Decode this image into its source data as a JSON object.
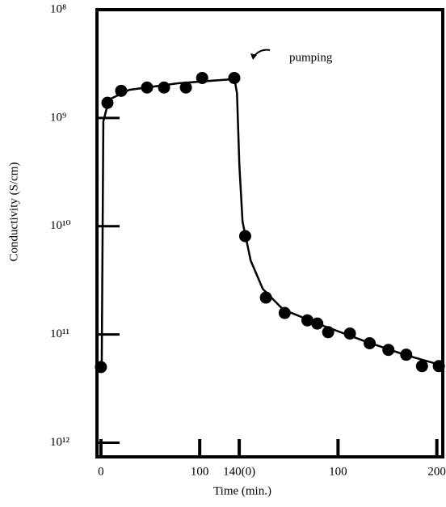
{
  "chart_data": {
    "type": "scatter",
    "x_label": "Time (min.)",
    "y_label": "Conductivity (S/cm)",
    "annotation": "pumping",
    "log_y": true,
    "grid": false,
    "xlim": [
      -4,
      346
    ],
    "ylim": [
      7.4e-13,
      1e-08
    ],
    "xticks": [
      0,
      100,
      {
        "value": 140,
        "label": "140(0)"
      },
      {
        "value": 240,
        "label": "100"
      },
      {
        "value": 340,
        "label": "200"
      }
    ],
    "yticks": [
      {
        "value": 1e-08,
        "label": "10⁸"
      },
      {
        "value": 1e-09,
        "label": "10⁹"
      },
      {
        "value": 1e-10,
        "label": "10¹⁰"
      },
      {
        "value": 1e-11,
        "label": "10¹¹"
      },
      {
        "value": 1e-12,
        "label": "10¹²"
      }
    ],
    "series": [
      {
        "style": "markers",
        "color": "#000000",
        "x": [
          0,
          6.6,
          20.5,
          46.7,
          63.9,
          86,
          102.5,
          135,
          146,
          167,
          186,
          209,
          219,
          230,
          252,
          272,
          291,
          309,
          325,
          342
        ],
        "values": [
          5e-12,
          1.38e-09,
          1.78e-09,
          1.91e-09,
          1.91e-09,
          1.91e-09,
          2.34e-09,
          2.34e-09,
          8.1e-11,
          2.19e-11,
          1.58e-11,
          1.35e-11,
          1.26e-11,
          1.05e-11,
          1.02e-11,
          8.3e-12,
          7.2e-12,
          6.5e-12,
          5.1e-12,
          5.1e-12
        ]
      },
      {
        "style": "line",
        "color": "#000000",
        "x": [
          0.8,
          2.5,
          8.2,
          28.7,
          77.9,
          135.2,
          137.7,
          140.2,
          143.4,
          151.6,
          163.9,
          184.4,
          225.4,
          266.4,
          307.4,
          344.3
        ],
        "values": [
          5e-12,
          9.3e-10,
          1.48e-09,
          1.82e-09,
          2.09e-09,
          2.29e-09,
          1.7e-09,
          3.6e-10,
          1.1e-10,
          4.8e-11,
          2.63e-11,
          1.7e-11,
          1.2e-11,
          8.7e-12,
          6.5e-12,
          5.2e-12
        ]
      }
    ]
  }
}
